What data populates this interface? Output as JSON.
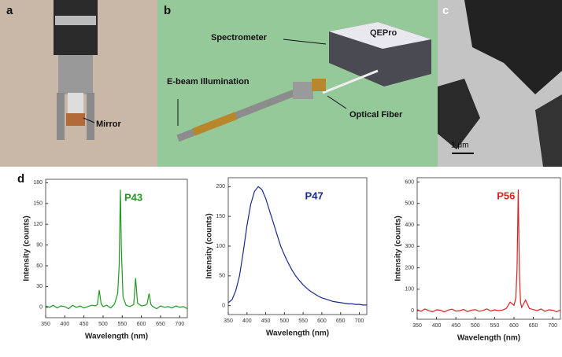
{
  "figure": {
    "panel_a": {
      "letter": "a",
      "annotation": "Mirror"
    },
    "panel_b": {
      "letter": "b",
      "spectrometer": "Spectrometer",
      "brand": "QEPro",
      "ebeam": "E-beam Illumination",
      "fiber": "Optical Fiber"
    },
    "panel_c": {
      "letter": "c",
      "scale": "1 μm"
    },
    "panel_d": {
      "letter": "d"
    }
  },
  "chart_data": [
    {
      "type": "line",
      "title": "P43",
      "color": "#1e9a1e",
      "x_label": "Wavelength (nm)",
      "y_label": "Intensity (counts)",
      "x": [
        350,
        360,
        370,
        380,
        390,
        400,
        410,
        420,
        430,
        440,
        450,
        460,
        470,
        480,
        485,
        490,
        495,
        500,
        510,
        520,
        530,
        538,
        542,
        545,
        548,
        552,
        560,
        570,
        580,
        585,
        590,
        600,
        610,
        615,
        620,
        625,
        630,
        640,
        650,
        660,
        670,
        680,
        690,
        700,
        710,
        720
      ],
      "values": [
        2,
        0,
        3,
        -1,
        2,
        1,
        -2,
        3,
        0,
        2,
        -1,
        1,
        3,
        2,
        4,
        25,
        5,
        1,
        3,
        -1,
        5,
        20,
        60,
        170,
        80,
        15,
        3,
        1,
        4,
        42,
        6,
        2,
        3,
        5,
        20,
        4,
        1,
        -2,
        2,
        0,
        1,
        -1,
        2,
        0,
        1,
        -2
      ],
      "xlim": [
        350,
        720
      ],
      "xticks": [
        350,
        400,
        450,
        500,
        550,
        600,
        650,
        700
      ],
      "ylim": [
        -15,
        185
      ],
      "yticks": [
        0,
        30,
        60,
        90,
        120,
        150,
        180
      ]
    },
    {
      "type": "line",
      "title": "P47",
      "color": "#1a2a8c",
      "x_label": "Wavelength (nm)",
      "y_label": "Intensity (counts)",
      "x": [
        350,
        360,
        370,
        380,
        390,
        400,
        410,
        420,
        430,
        440,
        450,
        460,
        470,
        480,
        490,
        500,
        510,
        520,
        530,
        540,
        550,
        560,
        570,
        580,
        590,
        600,
        610,
        620,
        630,
        640,
        650,
        660,
        670,
        680,
        690,
        700,
        710,
        720
      ],
      "values": [
        5,
        10,
        25,
        50,
        90,
        135,
        170,
        192,
        200,
        195,
        180,
        160,
        140,
        120,
        100,
        85,
        72,
        60,
        50,
        42,
        35,
        29,
        24,
        20,
        16,
        13,
        11,
        9,
        7,
        6,
        5,
        4,
        3,
        3,
        2,
        2,
        1,
        1
      ],
      "xlim": [
        350,
        720
      ],
      "xticks": [
        350,
        400,
        450,
        500,
        550,
        600,
        650,
        700
      ],
      "ylim": [
        -15,
        215
      ],
      "yticks": [
        0,
        50,
        100,
        150,
        200
      ]
    },
    {
      "type": "line",
      "title": "P56",
      "color": "#e02020",
      "x_label": "Wavelength (nm)",
      "y_label": "Intensity (counts)",
      "x": [
        350,
        360,
        370,
        380,
        390,
        400,
        410,
        420,
        430,
        440,
        450,
        460,
        470,
        480,
        490,
        500,
        510,
        520,
        530,
        540,
        550,
        560,
        570,
        580,
        590,
        600,
        605,
        608,
        611,
        614,
        617,
        620,
        630,
        640,
        650,
        660,
        670,
        680,
        690,
        700,
        710,
        720
      ],
      "values": [
        5,
        -3,
        8,
        0,
        -5,
        4,
        2,
        -6,
        3,
        7,
        -2,
        0,
        6,
        -4,
        2,
        5,
        -3,
        1,
        8,
        -2,
        4,
        0,
        3,
        10,
        40,
        25,
        60,
        200,
        565,
        180,
        40,
        15,
        50,
        10,
        5,
        0,
        8,
        -3,
        4,
        2,
        -5,
        3
      ],
      "xlim": [
        350,
        720
      ],
      "xticks": [
        350,
        400,
        450,
        500,
        550,
        600,
        650,
        700
      ],
      "ylim": [
        -40,
        620
      ],
      "yticks": [
        0,
        100,
        200,
        300,
        400,
        500,
        600
      ]
    }
  ]
}
